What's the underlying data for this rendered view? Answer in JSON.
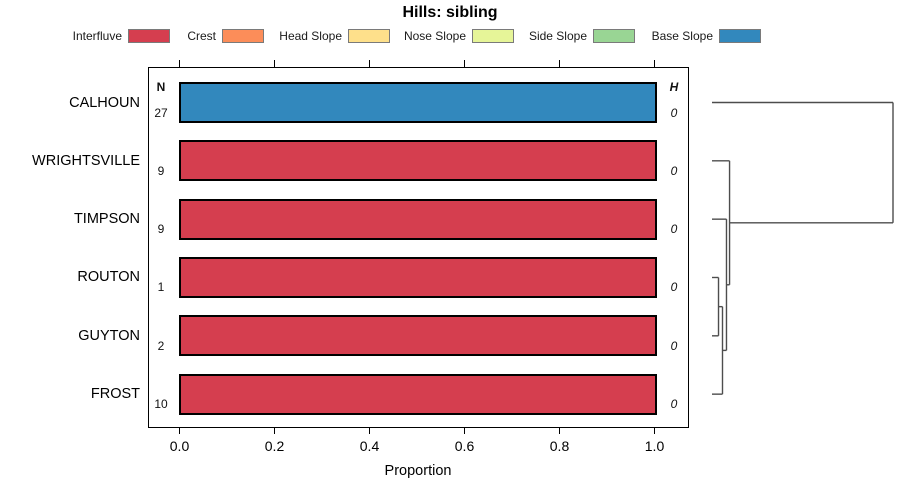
{
  "chart_data": {
    "type": "bar",
    "orientation": "horizontal",
    "title": "Hills: sibling",
    "xlabel": "Proportion",
    "xlim": [
      0,
      1
    ],
    "xtick_labels": [
      "0.0",
      "0.2",
      "0.4",
      "0.6",
      "0.8",
      "1.0"
    ],
    "columns": {
      "n_header": "N",
      "h_header": "H"
    },
    "legend": [
      {
        "label": "Interfluve",
        "color": "#D53E4F"
      },
      {
        "label": "Crest",
        "color": "#FC8D59"
      },
      {
        "label": "Head Slope",
        "color": "#FEE08B"
      },
      {
        "label": "Nose Slope",
        "color": "#E6F598"
      },
      {
        "label": "Side Slope",
        "color": "#99D594"
      },
      {
        "label": "Base Slope",
        "color": "#3288BD"
      }
    ],
    "rows": [
      {
        "label": "CALHOUN",
        "n": "27",
        "h": "0",
        "segments": [
          {
            "class": "Base Slope",
            "proportion": 1.0
          }
        ]
      },
      {
        "label": "WRIGHTSVILLE",
        "n": "9",
        "h": "0",
        "segments": [
          {
            "class": "Interfluve",
            "proportion": 1.0
          }
        ]
      },
      {
        "label": "TIMPSON",
        "n": "9",
        "h": "0",
        "segments": [
          {
            "class": "Interfluve",
            "proportion": 1.0
          }
        ]
      },
      {
        "label": "ROUTON",
        "n": "1",
        "h": "0",
        "segments": [
          {
            "class": "Interfluve",
            "proportion": 1.0
          }
        ]
      },
      {
        "label": "GUYTON",
        "n": "2",
        "h": "0",
        "segments": [
          {
            "class": "Interfluve",
            "proportion": 1.0
          }
        ]
      },
      {
        "label": "FROST",
        "n": "10",
        "h": "0",
        "segments": [
          {
            "class": "Interfluve",
            "proportion": 1.0
          }
        ]
      }
    ],
    "dendrogram": {
      "leaf_order": [
        "CALHOUN",
        "WRIGHTSVILLE",
        "TIMPSON",
        "ROUTON",
        "GUYTON",
        "FROST"
      ],
      "merges": [
        {
          "a": "ROUTON",
          "b": "GUYTON",
          "height": 0.036
        },
        {
          "a": "@0",
          "b": "FROST",
          "height": 0.058
        },
        {
          "a": "TIMPSON",
          "b": "@1",
          "height": 0.08
        },
        {
          "a": "WRIGHTSVILLE",
          "b": "@2",
          "height": 0.097
        },
        {
          "a": "CALHOUN",
          "b": "@3",
          "height": 1.0
        }
      ]
    }
  }
}
